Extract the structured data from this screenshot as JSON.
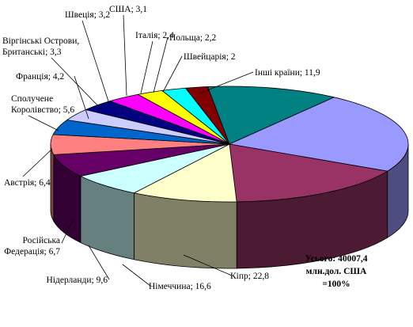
{
  "chart_data": {
    "type": "pie",
    "title": "",
    "total_note": [
      "Усього: 40007,4",
      "млн.дол. США",
      "=100%"
    ],
    "slices": [
      {
        "label": "Інші країни",
        "value": 11.9,
        "display": "Інші країни; 11,9",
        "color": "#008080"
      },
      {
        "label": "Кіпр",
        "value": 22.8,
        "display": "Кіпр; 22,8",
        "color": "#9999ff"
      },
      {
        "label": "Німеччина",
        "value": 16.6,
        "display": "Німеччина; 16,6",
        "color": "#993366"
      },
      {
        "label": "Нідерланди",
        "value": 9.6,
        "display": "Нідерланди; 9,6",
        "color": "#ffffcc"
      },
      {
        "label": "Російська Федерація",
        "value": 6.7,
        "display": [
          "Російська",
          "Федерація; 6,7"
        ],
        "color": "#ccffff"
      },
      {
        "label": "Австрія",
        "value": 6.4,
        "display": "Австрія; 6,4",
        "color": "#660066"
      },
      {
        "label": "Сполучене Королівство",
        "value": 5.6,
        "display": [
          "Сполучене",
          "Королівство; 5,6"
        ],
        "color": "#ff8080"
      },
      {
        "label": "Франція",
        "value": 4.2,
        "display": "Франція; 4,2",
        "color": "#0066cc"
      },
      {
        "label": "Віргінські Острови, Британські",
        "value": 3.3,
        "display": [
          "Віргінські Острови,",
          "Британські; 3,3"
        ],
        "color": "#ccccff"
      },
      {
        "label": "Швеція",
        "value": 3.2,
        "display": "Швеція; 3,2",
        "color": "#000080"
      },
      {
        "label": "США",
        "value": 3.1,
        "display": "США; 3,1",
        "color": "#ff00ff"
      },
      {
        "label": "Італія",
        "value": 2.4,
        "display": "Італія; 2,4",
        "color": "#ffff00"
      },
      {
        "label": "Польща",
        "value": 2.2,
        "display": "Польща; 2,2",
        "color": "#00ffff"
      },
      {
        "label": "Швейцарія",
        "value": 2.0,
        "display": "Швейцарія; 2",
        "color": "#800000"
      }
    ]
  }
}
